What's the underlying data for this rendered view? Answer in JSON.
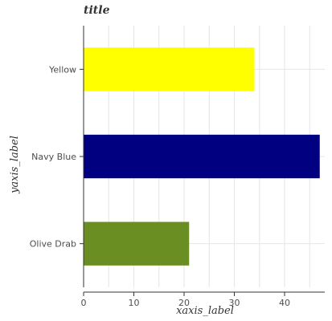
{
  "chart_data": {
    "type": "bar",
    "orientation": "horizontal",
    "title": "title",
    "xlabel": "xaxis_label",
    "ylabel": "yaxis_label",
    "categories": [
      "Olive Drab",
      "Navy Blue",
      "Yellow"
    ],
    "values": [
      21,
      47,
      34
    ],
    "colors": [
      "#6b8e23",
      "#000080",
      "#ffff00"
    ],
    "xlim": [
      0,
      48
    ],
    "xticks": [
      0,
      10,
      20,
      30,
      40
    ],
    "grid": true,
    "legend": "none"
  }
}
